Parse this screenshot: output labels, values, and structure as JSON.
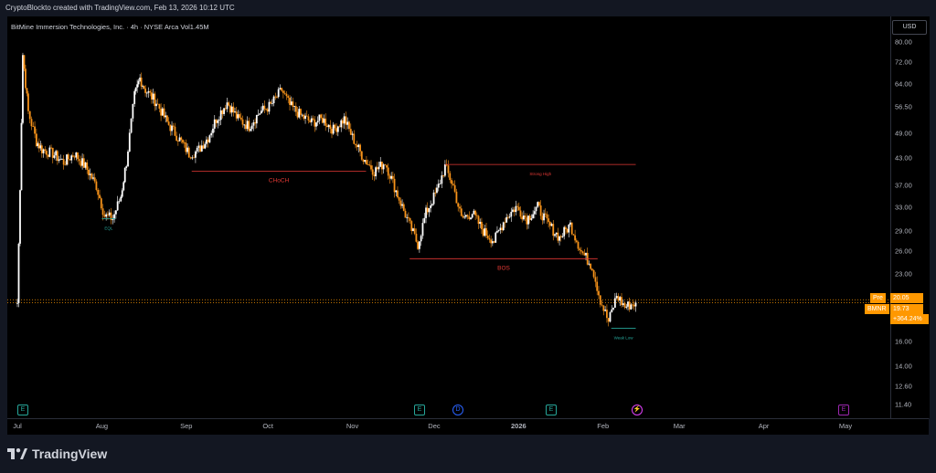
{
  "header": {
    "text": "CryptoBlockto created with TradingView.com, Feb 13, 2026 10:12 UTC"
  },
  "symbol_line": "BitMine Immersion Technologies, Inc. · 4h · NYSE Arca   Vol1.45M",
  "currency": "USD",
  "footer": {
    "brand": "TradingView"
  },
  "colors": {
    "up": "#ffffff",
    "down": "#f7931a",
    "bg": "#000000",
    "pre": "#ff9800",
    "annotation_red": "#e53935",
    "annotation_green": "#26a69a"
  },
  "badges": {
    "pre_label": "Pre",
    "pre_price": "20.05",
    "ticker": "BMNR",
    "last_price": "19.73",
    "change": "+364.24%"
  },
  "events": [
    {
      "type": "E",
      "icon": "earnings-icon"
    },
    {
      "type": "E",
      "icon": "earnings-icon"
    },
    {
      "type": "D",
      "icon": "dividend-icon"
    },
    {
      "type": "E",
      "icon": "earnings-icon"
    },
    {
      "type": "⚡",
      "icon": "split-icon"
    },
    {
      "type": "E",
      "icon": "earnings-icon"
    }
  ],
  "chart_data": {
    "type": "candlestick",
    "scale": "log",
    "y_ticks": [
      80.0,
      72.0,
      64.0,
      56.5,
      49.0,
      43.0,
      37.0,
      33.0,
      29.0,
      26.0,
      23.0,
      20.05,
      18.0,
      16.0,
      14.0,
      12.6,
      11.4
    ],
    "y_tick_labels": [
      "80.00",
      "72.00",
      "64.00",
      "56.50",
      "49.00",
      "43.00",
      "37.00",
      "33.00",
      "29.00",
      "26.00",
      "23.00",
      "20.05",
      "18.00",
      "16.00",
      "14.00",
      "12.60",
      "11.40"
    ],
    "x_labels": [
      "Jul",
      "Aug",
      "Sep",
      "Oct",
      "Nov",
      "Dec",
      "2026",
      "Feb",
      "Mar",
      "Apr",
      "May"
    ],
    "ylim": [
      10.6,
      92
    ],
    "close_path": [
      [
        "Jul 1",
        19.7
      ],
      [
        "Jul 2",
        37.0
      ],
      [
        "Jul 3",
        75.0
      ],
      [
        "Jul 5",
        55.0
      ],
      [
        "Jul 8",
        47.0
      ],
      [
        "Jul 10",
        45.0
      ],
      [
        "Jul 14",
        44.0
      ],
      [
        "Jul 18",
        42.0
      ],
      [
        "Jul 22",
        44.0
      ],
      [
        "Jul 26",
        41.0
      ],
      [
        "Jul 30",
        37.0
      ],
      [
        "Aug 2",
        31.5
      ],
      [
        "Aug 5",
        31.0
      ],
      [
        "Aug 8",
        35.0
      ],
      [
        "Aug 10",
        42.0
      ],
      [
        "Aug 13",
        60.0
      ],
      [
        "Aug 15",
        66.0
      ],
      [
        "Aug 17",
        62.0
      ],
      [
        "Aug 21",
        58.0
      ],
      [
        "Aug 25",
        52.0
      ],
      [
        "Aug 29",
        48.0
      ],
      [
        "Sep 2",
        44.0
      ],
      [
        "Sep 5",
        44.5
      ],
      [
        "Sep 9",
        48.0
      ],
      [
        "Sep 12",
        53.0
      ],
      [
        "Sep 16",
        58.0
      ],
      [
        "Sep 20",
        53.0
      ],
      [
        "Sep 24",
        51.0
      ],
      [
        "Sep 28",
        55.0
      ],
      [
        "Oct 2",
        57.0
      ],
      [
        "Oct 6",
        62.0
      ],
      [
        "Oct 9",
        57.0
      ],
      [
        "Oct 13",
        54.0
      ],
      [
        "Oct 17",
        52.0
      ],
      [
        "Oct 21",
        53.0
      ],
      [
        "Oct 25",
        50.0
      ],
      [
        "Oct 29",
        53.0
      ],
      [
        "Nov 1",
        48.0
      ],
      [
        "Nov 5",
        43.0
      ],
      [
        "Nov 9",
        40.0
      ],
      [
        "Nov 13",
        42.0
      ],
      [
        "Nov 17",
        36.0
      ],
      [
        "Nov 21",
        31.0
      ],
      [
        "Nov 25",
        27.0
      ],
      [
        "Nov 28",
        32.0
      ],
      [
        "Dec 2",
        36.0
      ],
      [
        "Dec 5",
        41.0
      ],
      [
        "Dec 8",
        37.0
      ],
      [
        "Dec 11",
        31.0
      ],
      [
        "Dec 15",
        32.0
      ],
      [
        "Dec 19",
        29.0
      ],
      [
        "Dec 23",
        27.5
      ],
      [
        "Dec 27",
        31.0
      ],
      [
        "Dec 31",
        33.0
      ],
      [
        "Jan 4",
        31.0
      ],
      [
        "Jan 8",
        33.0
      ],
      [
        "Jan 12",
        30.0
      ],
      [
        "Jan 16",
        28.0
      ],
      [
        "Jan 20",
        30.0
      ],
      [
        "Jan 24",
        26.0
      ],
      [
        "Jan 28",
        24.0
      ],
      [
        "Jan 31",
        20.0
      ],
      [
        "Feb 3",
        17.8
      ],
      [
        "Feb 6",
        20.5
      ],
      [
        "Feb 9",
        19.3
      ],
      [
        "Feb 13",
        19.73
      ]
    ],
    "annotations": [
      {
        "label": "CHoCH",
        "level": 40.0,
        "from": "Sep 3",
        "to": "Nov 6"
      },
      {
        "label": "Strong High",
        "level": 41.5,
        "from": "Dec 5",
        "to": "Feb 13"
      },
      {
        "label": "BOS",
        "level": 25.0,
        "from": "Nov 22",
        "to": "Jan 30"
      },
      {
        "label": "Weak Low",
        "level": 17.2,
        "from": "Feb 4",
        "to": "Feb 13"
      },
      {
        "label": "EQL",
        "level": 31.0,
        "from": "Aug 1",
        "to": "Aug 6"
      }
    ],
    "price_lines": [
      20.05,
      19.73
    ]
  }
}
